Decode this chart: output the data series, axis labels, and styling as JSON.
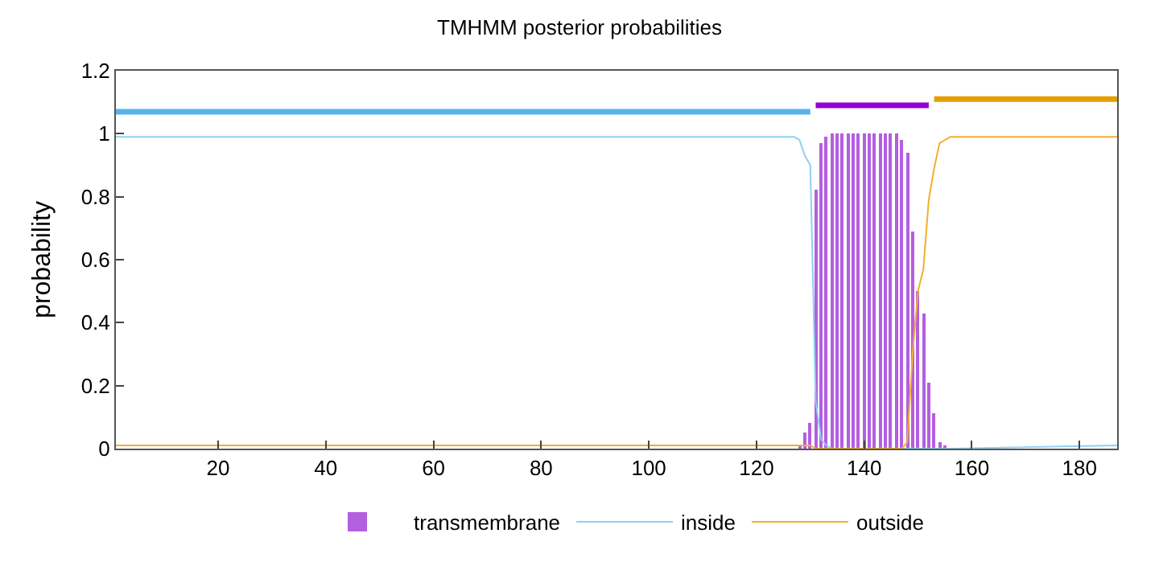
{
  "chart_data": {
    "type": "line",
    "title": "TMHMM posterior probabilities",
    "ylabel": "probability",
    "xlim": [
      1,
      187
    ],
    "xticks": [
      20,
      40,
      60,
      80,
      100,
      120,
      140,
      160,
      180
    ],
    "ylim": [
      0,
      1.2
    ],
    "yticks": [
      0,
      0.2,
      0.4,
      0.6,
      0.8,
      1,
      1.2
    ],
    "legend": "bottom",
    "series": [
      {
        "name": "transmembrane",
        "type": "bar",
        "color": "#b45ee0",
        "x": [
          128,
          129,
          130,
          131,
          132,
          133,
          134,
          135,
          136,
          137,
          138,
          139,
          140,
          141,
          142,
          143,
          144,
          145,
          146,
          147,
          148,
          149,
          150,
          151,
          152,
          153,
          154,
          155
        ],
        "values": [
          0.01,
          0.05,
          0.08,
          0.82,
          0.97,
          0.99,
          1,
          1,
          1,
          1,
          1,
          1,
          1,
          1,
          1,
          1,
          1,
          1,
          1,
          0.98,
          0.94,
          0.69,
          0.5,
          0.43,
          0.21,
          0.11,
          0.02,
          0.01
        ]
      },
      {
        "name": "inside",
        "color": "#8fd0f0",
        "x": [
          1,
          127,
          128,
          129,
          130,
          131,
          132,
          133,
          134,
          156,
          187
        ],
        "values": [
          0.99,
          0.99,
          0.98,
          0.93,
          0.9,
          0.15,
          0.03,
          0.01,
          0,
          0,
          0.01
        ]
      },
      {
        "name": "outside",
        "color": "#f0b030",
        "x": [
          1,
          130,
          131,
          147,
          148,
          149,
          150,
          151,
          152,
          153,
          154,
          155,
          156,
          187
        ],
        "values": [
          0.01,
          0.01,
          0,
          0,
          0.02,
          0.3,
          0.5,
          0.57,
          0.79,
          0.89,
          0.97,
          0.98,
          0.99,
          0.99
        ]
      },
      {
        "color": "#56b4e9",
        "x": [
          1,
          130
        ],
        "values": [
          1.07,
          1.07
        ]
      },
      {
        "color": "#9400d3",
        "x": [
          131,
          152
        ],
        "values": [
          1.09,
          1.09
        ]
      },
      {
        "color": "#e69f00",
        "x": [
          153,
          187
        ],
        "values": [
          1.11,
          1.11
        ]
      }
    ]
  }
}
